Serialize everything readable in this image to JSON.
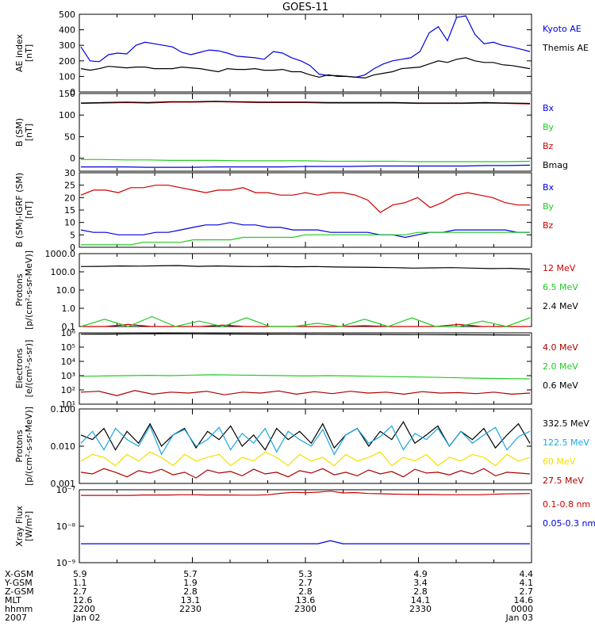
{
  "title": "GOES-11",
  "colors": {
    "black": "#000000",
    "red": "#cc0000",
    "green": "#22cc22",
    "blue": "#0000dd",
    "yellow": "#f2e000",
    "cyan": "#1aa7e0",
    "darkred": "#aa0000"
  },
  "chart_data": [
    {
      "type": "line",
      "ylabel": [
        "AE index",
        "[nT]"
      ],
      "ylim": [
        0,
        500
      ],
      "scale": "linear",
      "ticks": [
        {
          "v": 0,
          "label": "0"
        },
        {
          "v": 100,
          "label": "100"
        },
        {
          "v": 200,
          "label": "200"
        },
        {
          "v": 300,
          "label": "300"
        },
        {
          "v": 400,
          "label": "400"
        },
        {
          "v": 500,
          "label": "500"
        }
      ],
      "series": [
        {
          "name": "Kyoto AE",
          "color": "#0000dd",
          "values": [
            290,
            200,
            195,
            240,
            250,
            245,
            300,
            320,
            310,
            300,
            290,
            255,
            240,
            255,
            270,
            265,
            250,
            230,
            225,
            220,
            210,
            260,
            250,
            220,
            200,
            170,
            115,
            105,
            105,
            100,
            95,
            110,
            150,
            180,
            200,
            210,
            220,
            260,
            380,
            420,
            330,
            480,
            490,
            370,
            310,
            320,
            300,
            290,
            275,
            260
          ]
        },
        {
          "name": "Themis AE",
          "color": "#000000",
          "values": [
            150,
            140,
            150,
            165,
            160,
            155,
            160,
            160,
            150,
            150,
            150,
            160,
            155,
            150,
            140,
            130,
            150,
            145,
            145,
            150,
            140,
            140,
            145,
            130,
            130,
            110,
            95,
            110,
            100,
            100,
            95,
            90,
            110,
            120,
            130,
            150,
            155,
            160,
            180,
            200,
            190,
            210,
            220,
            200,
            190,
            190,
            175,
            170,
            160,
            150
          ]
        }
      ]
    },
    {
      "type": "line",
      "ylabel": [
        "B (SM)",
        "[nT]"
      ],
      "ylim": [
        -30,
        150
      ],
      "scale": "linear",
      "ticks": [
        {
          "v": 0,
          "label": "0"
        },
        {
          "v": 50,
          "label": "50"
        },
        {
          "v": 100,
          "label": "100"
        },
        {
          "v": 150,
          "label": "150"
        }
      ],
      "series": [
        {
          "name": "Bx",
          "color": "#0000dd",
          "values": [
            -20,
            -20,
            -20,
            -21,
            -21,
            -21,
            -20,
            -20,
            -20,
            -20,
            -19,
            -19,
            -19,
            -18,
            -18,
            -18,
            -18,
            -18,
            -17,
            -17,
            -16
          ]
        },
        {
          "name": "By",
          "color": "#22cc22",
          "values": [
            -3,
            -3,
            -4,
            -4,
            -5,
            -5,
            -5,
            -6,
            -6,
            -6,
            -6,
            -7,
            -7,
            -7,
            -7,
            -8,
            -8,
            -8,
            -8,
            -8,
            -7
          ]
        },
        {
          "name": "Bz",
          "color": "#cc0000",
          "values": [
            127,
            128,
            129,
            128,
            130,
            130,
            131,
            130,
            129,
            129,
            129,
            128,
            128,
            128,
            128,
            127,
            127,
            127,
            128,
            127,
            126
          ]
        },
        {
          "name": "Bmag",
          "color": "#000000",
          "values": [
            128,
            129,
            130,
            129,
            131,
            131,
            132,
            131,
            130,
            130,
            130,
            129,
            129,
            129,
            129,
            128,
            128,
            128,
            129,
            128,
            127
          ]
        }
      ]
    },
    {
      "type": "line",
      "ylabel": [
        "B (SM)-IGRF (SM)",
        "[nT]"
      ],
      "ylim": [
        0,
        30
      ],
      "scale": "linear",
      "ticks": [
        {
          "v": 0,
          "label": "0"
        },
        {
          "v": 5,
          "label": "5"
        },
        {
          "v": 10,
          "label": "10"
        },
        {
          "v": 15,
          "label": "15"
        },
        {
          "v": 20,
          "label": "20"
        },
        {
          "v": 25,
          "label": "25"
        },
        {
          "v": 30,
          "label": "30"
        }
      ],
      "series": [
        {
          "name": "Bx",
          "color": "#0000dd",
          "values": [
            7,
            6,
            6,
            5,
            5,
            5,
            6,
            6,
            7,
            8,
            9,
            9,
            10,
            9,
            9,
            8,
            8,
            7,
            7,
            7,
            6,
            6,
            6,
            6,
            5,
            5,
            4,
            5,
            6,
            6,
            7,
            7,
            7,
            7,
            7,
            6,
            6
          ]
        },
        {
          "name": "By",
          "color": "#22cc22",
          "values": [
            1,
            1,
            1,
            1,
            1,
            2,
            2,
            2,
            2,
            3,
            3,
            3,
            3,
            4,
            4,
            4,
            4,
            4,
            5,
            5,
            5,
            5,
            5,
            5,
            5,
            5,
            5,
            6,
            6,
            6,
            6,
            6,
            6,
            6,
            6,
            6,
            6
          ]
        },
        {
          "name": "Bz",
          "color": "#cc0000",
          "values": [
            21,
            23,
            23,
            22,
            24,
            24,
            25,
            25,
            24,
            23,
            22,
            23,
            23,
            24,
            22,
            22,
            21,
            21,
            22,
            21,
            22,
            22,
            21,
            19,
            14,
            17,
            18,
            20,
            16,
            18,
            21,
            22,
            21,
            20,
            18,
            17,
            17
          ]
        }
      ]
    },
    {
      "type": "line",
      "ylabel": [
        "Protons",
        "[p/(cm²-s-sr-MeV)]"
      ],
      "ylim": [
        0.1,
        1000
      ],
      "scale": "log",
      "ticks": [
        {
          "v": 0.1,
          "label": "0.1"
        },
        {
          "v": 1,
          "label": "1.0"
        },
        {
          "v": 10,
          "label": "10.0"
        },
        {
          "v": 100,
          "label": "100.0"
        },
        {
          "v": 1000,
          "label": "1000.0"
        }
      ],
      "series": [
        {
          "name": "12 MeV",
          "color": "#cc0000",
          "values": [
            0.1,
            0.1,
            0.13,
            0.1,
            0.1,
            0.1,
            0.12,
            0.1,
            0.1,
            0.1,
            0.1,
            0.1,
            0.11,
            0.1,
            0.1,
            0.1,
            0.13,
            0.1,
            0.1,
            0.1
          ]
        },
        {
          "name": "6.5 MeV",
          "color": "#22cc22",
          "values": [
            0.1,
            0.25,
            0.1,
            0.35,
            0.1,
            0.2,
            0.1,
            0.3,
            0.1,
            0.1,
            0.15,
            0.1,
            0.25,
            0.1,
            0.3,
            0.1,
            0.1,
            0.2,
            0.1,
            0.3
          ]
        },
        {
          "name": "2.4 MeV",
          "color": "#000000",
          "values": [
            195,
            200,
            210,
            205,
            215,
            220,
            200,
            210,
            200,
            195,
            200,
            190,
            195,
            185,
            180,
            175,
            170,
            160,
            165,
            170,
            160,
            150,
            155,
            140
          ]
        }
      ]
    },
    {
      "type": "line",
      "ylabel": [
        "Electrons",
        "[e/(cm²-s-sr)]"
      ],
      "ylim": [
        10,
        1000000
      ],
      "scale": "log",
      "ticks": [
        {
          "v": 10,
          "label": "10¹"
        },
        {
          "v": 100,
          "label": "10²"
        },
        {
          "v": 1000,
          "label": "10³"
        },
        {
          "v": 10000,
          "label": "10⁴"
        },
        {
          "v": 100000,
          "label": "10⁵"
        },
        {
          "v": 1000000,
          "label": "10⁶"
        }
      ],
      "series": [
        {
          "name": "4.0 MeV",
          "color": "#aa0000",
          "values": [
            70,
            80,
            40,
            90,
            50,
            70,
            60,
            80,
            45,
            70,
            60,
            85,
            50,
            75,
            55,
            80,
            60,
            70,
            50,
            75,
            60,
            65,
            55,
            70,
            50,
            60
          ]
        },
        {
          "name": "2.0 MeV",
          "color": "#22cc22",
          "values": [
            900,
            950,
            1000,
            1050,
            1000,
            1100,
            1150,
            1100,
            1050,
            1000,
            950,
            1000,
            950,
            900,
            850,
            800,
            750,
            700,
            650,
            620,
            600
          ]
        },
        {
          "name": "0.6 MeV",
          "color": "#000000",
          "values": [
            800000,
            820000,
            850000,
            870000,
            860000,
            840000,
            830000,
            820000,
            800000,
            790000,
            780000,
            770000,
            760000,
            750000,
            740000,
            730000,
            720000,
            700000
          ]
        }
      ]
    },
    {
      "type": "line",
      "ylabel": [
        "Protons",
        "[p/(cm²-s-sr-MeV)]"
      ],
      "ylim": [
        0.001,
        0.1
      ],
      "scale": "log",
      "ticks": [
        {
          "v": 0.001,
          "label": "0.001"
        },
        {
          "v": 0.01,
          "label": "0.010"
        },
        {
          "v": 0.1,
          "label": "0.100"
        }
      ],
      "series": [
        {
          "name": "332.5 MeV",
          "color": "#000000",
          "values": [
            0.02,
            0.015,
            0.03,
            0.008,
            0.025,
            0.012,
            0.04,
            0.01,
            0.02,
            0.03,
            0.009,
            0.025,
            0.015,
            0.035,
            0.01,
            0.02,
            0.008,
            0.03,
            0.015,
            0.025,
            0.012,
            0.04,
            0.009,
            0.02,
            0.03,
            0.01,
            0.025,
            0.015,
            0.045,
            0.012,
            0.02,
            0.035,
            0.01,
            0.025,
            0.015,
            0.03,
            0.009,
            0.02,
            0.04,
            0.012
          ]
        },
        {
          "name": "122.5 MeV",
          "color": "#1aa7e0",
          "values": [
            0.012,
            0.025,
            0.008,
            0.03,
            0.015,
            0.01,
            0.035,
            0.006,
            0.02,
            0.028,
            0.01,
            0.015,
            0.032,
            0.008,
            0.022,
            0.012,
            0.03,
            0.007,
            0.025,
            0.015,
            0.01,
            0.028,
            0.006,
            0.02,
            0.03,
            0.012,
            0.018,
            0.035,
            0.008,
            0.022,
            0.015,
            0.03,
            0.01,
            0.025,
            0.012,
            0.02,
            0.032,
            0.008,
            0.018,
            0.025
          ]
        },
        {
          "name": "60 MeV",
          "color": "#f2e000",
          "values": [
            0.004,
            0.006,
            0.005,
            0.003,
            0.006,
            0.004,
            0.007,
            0.005,
            0.003,
            0.006,
            0.004,
            0.005,
            0.006,
            0.003,
            0.005,
            0.004,
            0.007,
            0.005,
            0.003,
            0.006,
            0.004,
            0.005,
            0.003,
            0.006,
            0.004,
            0.005,
            0.007,
            0.003,
            0.005,
            0.004,
            0.006,
            0.003,
            0.005,
            0.004,
            0.006,
            0.005,
            0.003,
            0.006,
            0.004,
            0.005
          ]
        },
        {
          "name": "27.5 MeV",
          "color": "#aa0000",
          "values": [
            0.002,
            0.0018,
            0.0025,
            0.002,
            0.0015,
            0.0022,
            0.0019,
            0.0024,
            0.0017,
            0.002,
            0.0014,
            0.0023,
            0.0019,
            0.0021,
            0.0016,
            0.0024,
            0.0018,
            0.002,
            0.0015,
            0.0022,
            0.0019,
            0.0025,
            0.0017,
            0.002,
            0.0016,
            0.0023,
            0.0018,
            0.0021,
            0.0015,
            0.0024,
            0.0019,
            0.002,
            0.0017,
            0.0022,
            0.0018,
            0.0025,
            0.0016,
            0.002,
            0.0019,
            0.0018
          ]
        }
      ]
    },
    {
      "type": "line",
      "ylabel": [
        "Xray Flux",
        "[W/m²]"
      ],
      "ylim": [
        1e-09,
        1e-07
      ],
      "scale": "log",
      "ticks": [
        {
          "v": 1e-09,
          "label": "10⁻⁹"
        },
        {
          "v": 1e-08,
          "label": "10⁻⁸"
        },
        {
          "v": 1e-07,
          "label": "10⁻⁷"
        }
      ],
      "series": [
        {
          "name": "0.1-0.8 nm",
          "color": "#cc0000",
          "values": [
            7e-08,
            7e-08,
            7e-08,
            7e-08,
            7e-08,
            7.2e-08,
            7.2e-08,
            7.2e-08,
            7.3e-08,
            7.3e-08,
            7.2e-08,
            7.2e-08,
            7.2e-08,
            7.1e-08,
            7.1e-08,
            7.3e-08,
            8e-08,
            8.5e-08,
            8.3e-08,
            8.6e-08,
            9.2e-08,
            8.2e-08,
            8.4e-08,
            7.9e-08,
            7.8e-08,
            7.6e-08,
            7.5e-08,
            7.4e-08,
            7.4e-08,
            7.3e-08,
            7.3e-08,
            7.3e-08,
            7.3e-08,
            7.5e-08,
            7.7e-08,
            7.8e-08,
            7.9e-08
          ]
        },
        {
          "name": "0.05-0.3 nm",
          "color": "#0000dd",
          "values": [
            3.3e-09,
            3.3e-09,
            3.3e-09,
            3.3e-09,
            3.3e-09,
            3.3e-09,
            3.3e-09,
            3.3e-09,
            3.3e-09,
            3.3e-09,
            3.3e-09,
            3.3e-09,
            3.3e-09,
            3.3e-09,
            3.3e-09,
            3.3e-09,
            3.3e-09,
            3.3e-09,
            3.3e-09,
            3.3e-09,
            4e-09,
            3.3e-09,
            3.3e-09,
            3.3e-09,
            3.3e-09,
            3.3e-09,
            3.3e-09,
            3.3e-09,
            3.3e-09,
            3.3e-09,
            3.3e-09,
            3.3e-09,
            3.3e-09,
            3.3e-09,
            3.3e-09,
            3.3e-09,
            3.3e-09
          ]
        }
      ]
    }
  ],
  "xaxis": {
    "rows": [
      {
        "label": "X-GSM",
        "values": [
          "5.9",
          "5.7",
          "5.3",
          "4.9",
          "4.4"
        ]
      },
      {
        "label": "Y-GSM",
        "values": [
          "1.1",
          "1.9",
          "2.7",
          "3.4",
          "4.1"
        ]
      },
      {
        "label": "Z-GSM",
        "values": [
          "2.7",
          "2.8",
          "2.8",
          "2.8",
          "2.7"
        ]
      },
      {
        "label": "MLT",
        "values": [
          "12.6",
          "13.1",
          "13.6",
          "14.1",
          "14.6"
        ]
      },
      {
        "label": "hhmm",
        "values": [
          "2200",
          "2230",
          "2300",
          "2330",
          "0000"
        ]
      },
      {
        "label": "2007",
        "values": [
          "Jan 02",
          "",
          "",
          "",
          "Jan 03"
        ]
      }
    ]
  }
}
